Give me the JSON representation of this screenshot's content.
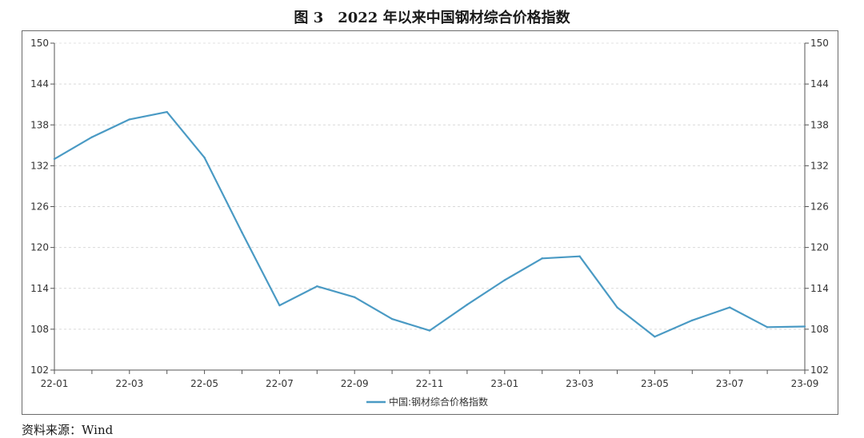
{
  "figure": {
    "title": "图 3　2022 年以来中国钢材综合价格指数",
    "source": "资料来源：Wind"
  },
  "chart_data": {
    "type": "line",
    "x": [
      "22-01",
      "22-02",
      "22-03",
      "22-04",
      "22-05",
      "22-06",
      "22-07",
      "22-08",
      "22-09",
      "22-10",
      "22-11",
      "22-12",
      "23-01",
      "23-02",
      "23-03",
      "23-04",
      "23-05",
      "23-06",
      "23-07",
      "23-08",
      "23-09"
    ],
    "x_tick_labels": [
      "22-01",
      "22-03",
      "22-05",
      "22-07",
      "22-09",
      "22-11",
      "23-01",
      "23-03",
      "23-05",
      "23-07",
      "23-09"
    ],
    "series": [
      {
        "name": "中国:钢材综合价格指数",
        "color": "#4a9ac4",
        "values": [
          133.0,
          136.2,
          138.8,
          139.9,
          133.2,
          122.2,
          111.5,
          114.3,
          112.7,
          109.5,
          107.8,
          111.6,
          115.2,
          118.4,
          118.7,
          111.2,
          106.9,
          109.3,
          111.2,
          108.3,
          108.4
        ]
      }
    ],
    "ylim": [
      102,
      150
    ],
    "y_ticks": [
      102,
      108,
      114,
      120,
      126,
      132,
      138,
      144,
      150
    ],
    "y_axis_right": true,
    "grid": "horizontal-dashed",
    "legend": "bottom-center"
  }
}
